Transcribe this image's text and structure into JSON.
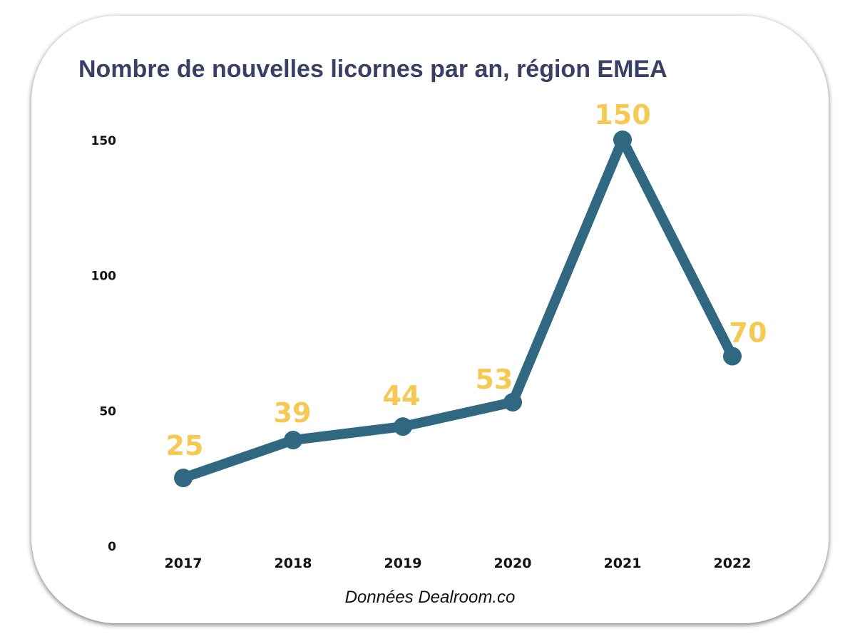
{
  "chart_data": {
    "type": "line",
    "title": "Nombre de nouvelles licornes par an, région EMEA",
    "categories": [
      "2017",
      "2018",
      "2019",
      "2020",
      "2021",
      "2022"
    ],
    "values": [
      25,
      39,
      44,
      53,
      150,
      70
    ],
    "data_labels": [
      "25",
      "39",
      "44",
      "53",
      "150",
      "70"
    ],
    "y_ticks": [
      "0",
      "50",
      "100",
      "150"
    ],
    "ylim": [
      0,
      150
    ],
    "grid": false,
    "legend": "none"
  },
  "source_note": "Données Dealroom.co",
  "colors": {
    "line": "#2f6880",
    "label": "#f6c955",
    "title": "#3a3f66"
  }
}
